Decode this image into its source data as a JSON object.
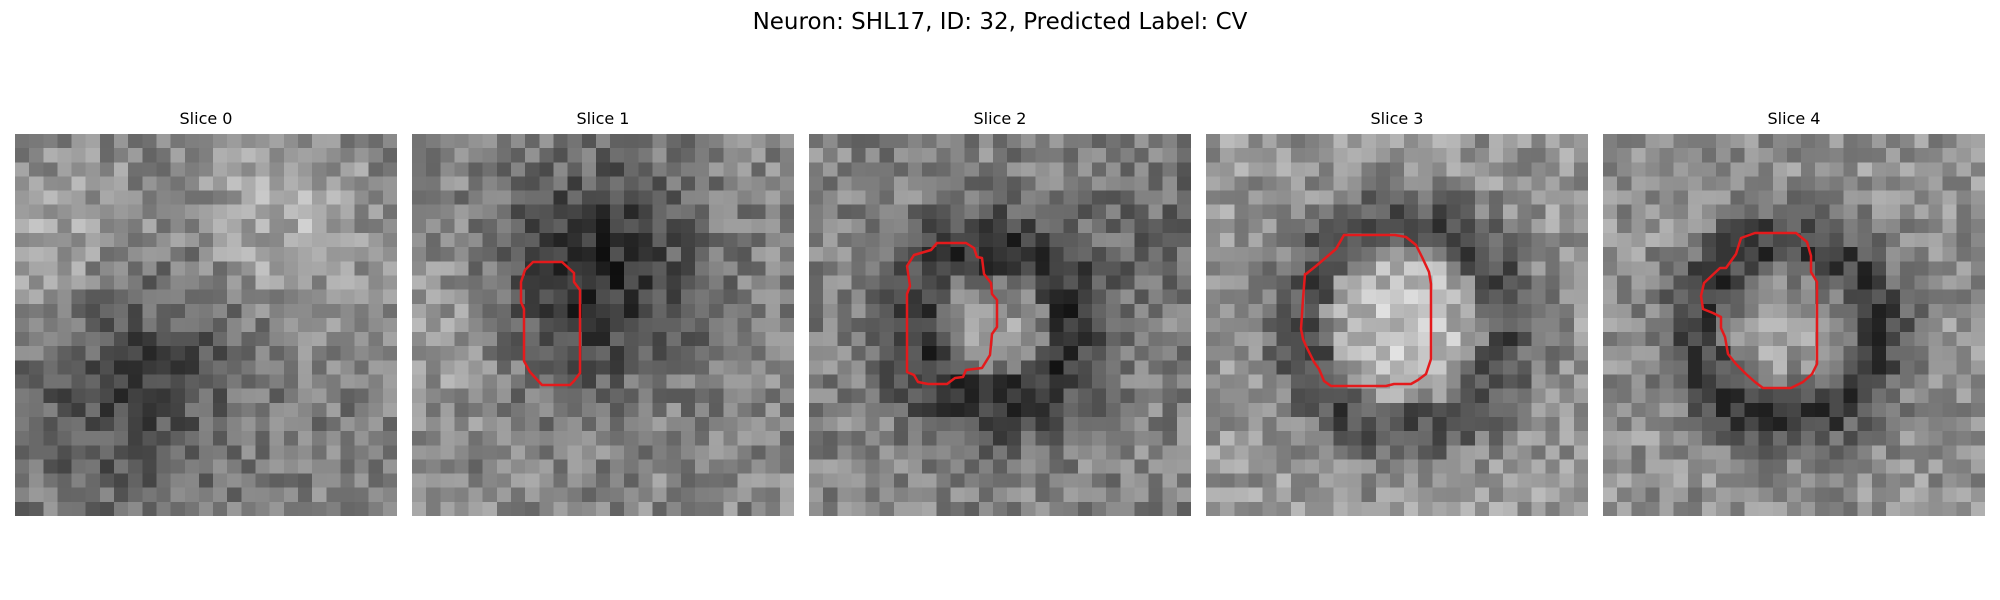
{
  "figure": {
    "title": "Neuron: SHL17, ID: 32, Predicted Label: CV"
  },
  "panels": [
    {
      "title": "Slice 0",
      "has_outline": false
    },
    {
      "title": "Slice 1",
      "has_outline": true
    },
    {
      "title": "Slice 2",
      "has_outline": true
    },
    {
      "title": "Slice 3",
      "has_outline": true
    },
    {
      "title": "Slice 4",
      "has_outline": true
    }
  ],
  "colors": {
    "background": "#ffffff",
    "outline": "#e41a1c",
    "colormap": "grayscale"
  }
}
